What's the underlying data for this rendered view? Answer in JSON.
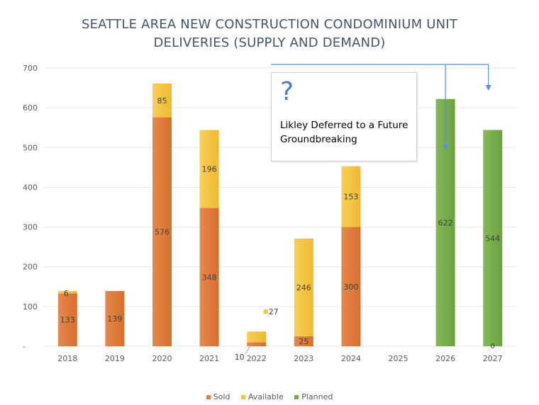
{
  "title_line1": "SEATTLE AREA NEW CONSTRUCTION CONDOMINIUM UNIT",
  "title_line2": "DELIVERIES (SUPPLY AND DEMAND)",
  "callout": {
    "symbol": "?",
    "text": "Likley Deferred to a Future Groundbreaking"
  },
  "chart_data": {
    "type": "bar",
    "stacked": true,
    "title": "SEATTLE AREA NEW CONSTRUCTION CONDOMINIUM UNIT DELIVERIES (SUPPLY AND DEMAND)",
    "categories": [
      "2018",
      "2019",
      "2020",
      "2021",
      "2022",
      "2023",
      "2024",
      "2025",
      "2026",
      "2027"
    ],
    "series": [
      {
        "name": "Sold",
        "color": "#e07b39",
        "values": [
          133,
          139,
          576,
          348,
          10,
          25,
          300,
          0,
          0,
          0
        ],
        "labels": [
          "133",
          "139",
          "576",
          "348",
          "10",
          "25",
          "300",
          "",
          "",
          ""
        ]
      },
      {
        "name": "Available",
        "color": "#f5c342",
        "values": [
          6,
          0,
          85,
          196,
          27,
          246,
          153,
          0,
          0,
          0
        ],
        "labels": [
          "6",
          "",
          "85",
          "196",
          "27",
          "246",
          "153",
          "",
          "",
          ""
        ]
      },
      {
        "name": "Planned",
        "color": "#76ad4a",
        "values": [
          0,
          0,
          0,
          0,
          0,
          0,
          0,
          0,
          622,
          544
        ],
        "labels": [
          "",
          "",
          "",
          "",
          "",
          "",
          "",
          "",
          "622",
          "544"
        ]
      }
    ],
    "ylim": [
      0,
      700
    ],
    "yticks": [
      "-",
      "100",
      "200",
      "300",
      "400",
      "500",
      "600",
      "700"
    ],
    "grid": true,
    "legend": "bottom",
    "zero_label_2027": "0"
  }
}
